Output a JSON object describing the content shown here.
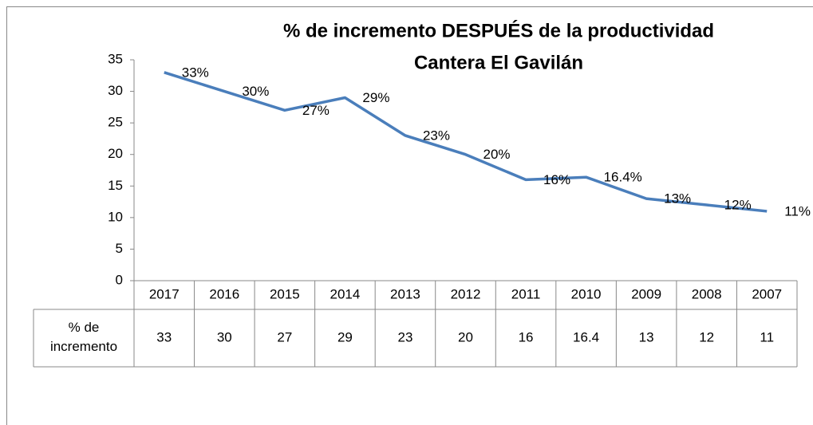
{
  "chart_data": {
    "type": "line",
    "title": "% de incremento DESPUÉS de la productividad",
    "subtitle": "Cantera El Gavilán",
    "categories": [
      "2017",
      "2016",
      "2015",
      "2014",
      "2013",
      "2012",
      "2011",
      "2010",
      "2009",
      "2008",
      "2007"
    ],
    "series": [
      {
        "name": "% de incremento",
        "color": "#4a7ebb",
        "values": [
          33,
          30,
          27,
          29,
          23,
          20,
          16,
          16.4,
          13,
          12,
          11
        ],
        "value_labels": [
          "33%",
          "30%",
          "27%",
          "29%",
          "23%",
          "20%",
          "16%",
          "16.4%",
          "13%",
          "12%",
          "11%"
        ]
      }
    ],
    "ylim": [
      0,
      35
    ],
    "yticks": [
      0,
      5,
      10,
      15,
      20,
      25,
      30,
      35
    ],
    "grid": false,
    "data_table": true
  }
}
